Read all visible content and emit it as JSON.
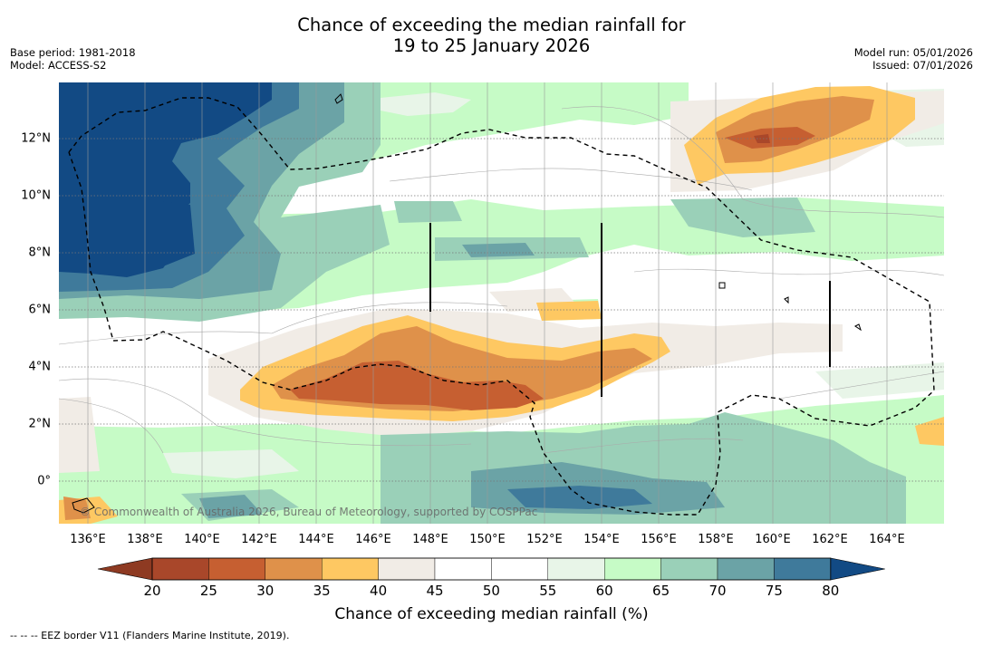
{
  "title": {
    "line1": "Chance of exceeding the median rainfall for",
    "line2": "19 to 25 January 2026"
  },
  "meta_left": {
    "base_period": "Base period: 1981-2018",
    "model": "Model: ACCESS-S2"
  },
  "meta_right": {
    "model_run": "Model run: 05/01/2026",
    "issued": "Issued: 07/01/2026"
  },
  "copyright": "© Commonwealth of Australia 2026, Bureau of Meteorology, supported by COSPPac",
  "map": {
    "lon_range": [
      135,
      166
    ],
    "lat_range": [
      -1.5,
      14
    ],
    "lon_ticks": [
      "136°E",
      "138°E",
      "140°E",
      "142°E",
      "144°E",
      "146°E",
      "148°E",
      "150°E",
      "152°E",
      "154°E",
      "156°E",
      "158°E",
      "160°E",
      "162°E",
      "164°E"
    ],
    "lat_ticks": [
      "12°N",
      "10°N",
      "8°N",
      "6°N",
      "4°N",
      "2°N",
      "0°"
    ]
  },
  "colorbar": {
    "labels": [
      "20",
      "25",
      "30",
      "35",
      "40",
      "45",
      "50",
      "55",
      "60",
      "65",
      "70",
      "75",
      "80"
    ],
    "colors": [
      "#a9472a",
      "#c65f31",
      "#df914a",
      "#fec862",
      "#f1ece6",
      "#ffffff",
      "#ffffff",
      "#e8f5e8",
      "#c6fbc6",
      "#9ad0b8",
      "#6ba3a6",
      "#3f7a9b"
    ],
    "extend_low_color": "#8e3a22",
    "extend_high_color": "#124a84",
    "title": "Chance of exceeding median rainfall (%)"
  },
  "footer": "-- -- -- EEZ border V11 (Flanders Marine Institute, 2019)."
}
